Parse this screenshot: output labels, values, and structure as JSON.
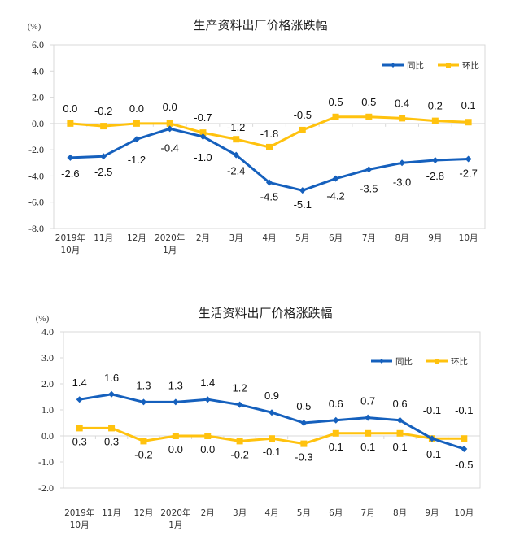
{
  "colors": {
    "yoy": "#1560BD",
    "mom": "#FFC20E",
    "axis": "#D9D9D9",
    "text": "#222222"
  },
  "chart_data": [
    {
      "type": "line",
      "title": "生产资料出厂价格涨跌幅",
      "unit_label": "(%)",
      "xlabel": "",
      "ylabel": "(%)",
      "ylim": [
        -8.0,
        6.0
      ],
      "yticks": [
        "6.0",
        "4.0",
        "2.0",
        "0.0",
        "-2.0",
        "-4.0",
        "-6.0",
        "-8.0"
      ],
      "ytick_values": [
        6,
        4,
        2,
        0,
        -2,
        -4,
        -6,
        -8
      ],
      "categories": [
        "2019年\n10月",
        "11月",
        "12月",
        "2020年\n1月",
        "2月",
        "3月",
        "4月",
        "5月",
        "6月",
        "7月",
        "8月",
        "9月",
        "10月"
      ],
      "legend": {
        "position": "top-right",
        "items": [
          "同比",
          "环比"
        ]
      },
      "grid": false,
      "series": [
        {
          "name": "同比",
          "marker": "diamond",
          "values": [
            -2.6,
            -2.5,
            -1.2,
            -0.4,
            -1.0,
            -2.4,
            -4.5,
            -5.1,
            -4.2,
            -3.5,
            -3.0,
            -2.8,
            -2.7
          ],
          "labels": [
            "-2.6",
            "-2.5",
            "-1.2",
            "-0.4",
            "-1.0",
            "-2.4",
            "-4.5",
            "-5.1",
            "-4.2",
            "-3.5",
            "-3.0",
            "-2.8",
            "-2.7"
          ]
        },
        {
          "name": "环比",
          "marker": "square",
          "values": [
            0.0,
            -0.2,
            0.0,
            0.0,
            -0.7,
            -1.2,
            -1.8,
            -0.5,
            0.5,
            0.5,
            0.4,
            0.2,
            0.1
          ],
          "labels": [
            "0.0",
            "-0.2",
            "0.0",
            "0.0",
            "-0.7",
            "-1.2",
            "-1.8",
            "-0.5",
            "0.5",
            "0.5",
            "0.4",
            "0.2",
            "0.1"
          ]
        }
      ]
    },
    {
      "type": "line",
      "title": "生活资料出厂价格涨跌幅",
      "unit_label": "(%)",
      "xlabel": "",
      "ylabel": "(%)",
      "ylim": [
        -2.0,
        4.0
      ],
      "yticks": [
        "4.0",
        "3.0",
        "2.0",
        "1.0",
        "0.0",
        "-1.0",
        "-2.0"
      ],
      "ytick_values": [
        4,
        3,
        2,
        1,
        0,
        -1,
        -2
      ],
      "categories": [
        "2019年\n10月",
        "11月",
        "12月",
        "2020年\n1月",
        "2月",
        "3月",
        "4月",
        "5月",
        "6月",
        "7月",
        "8月",
        "9月",
        "10月"
      ],
      "legend": {
        "position": "top-right",
        "items": [
          "同比",
          "环比"
        ]
      },
      "grid": false,
      "series": [
        {
          "name": "同比",
          "marker": "diamond",
          "values": [
            1.4,
            1.6,
            1.3,
            1.3,
            1.4,
            1.2,
            0.9,
            0.5,
            0.6,
            0.7,
            0.6,
            -0.1,
            -0.5
          ],
          "labels": [
            "1.4",
            "1.6",
            "1.3",
            "1.3",
            "1.4",
            "1.2",
            "0.9",
            "0.5",
            "0.6",
            "0.7",
            "0.6",
            "-0.1",
            "-0.5"
          ]
        },
        {
          "name": "环比",
          "marker": "square",
          "values": [
            0.3,
            0.3,
            -0.2,
            0.0,
            0.0,
            -0.2,
            -0.1,
            -0.3,
            0.1,
            0.1,
            0.1,
            -0.1,
            -0.1
          ],
          "labels": [
            "0.3",
            "0.3",
            "-0.2",
            "0.0",
            "0.0",
            "-0.2",
            "-0.1",
            "-0.3",
            "0.1",
            "0.1",
            "0.1",
            "-0.1",
            "-0.1"
          ]
        }
      ]
    }
  ]
}
